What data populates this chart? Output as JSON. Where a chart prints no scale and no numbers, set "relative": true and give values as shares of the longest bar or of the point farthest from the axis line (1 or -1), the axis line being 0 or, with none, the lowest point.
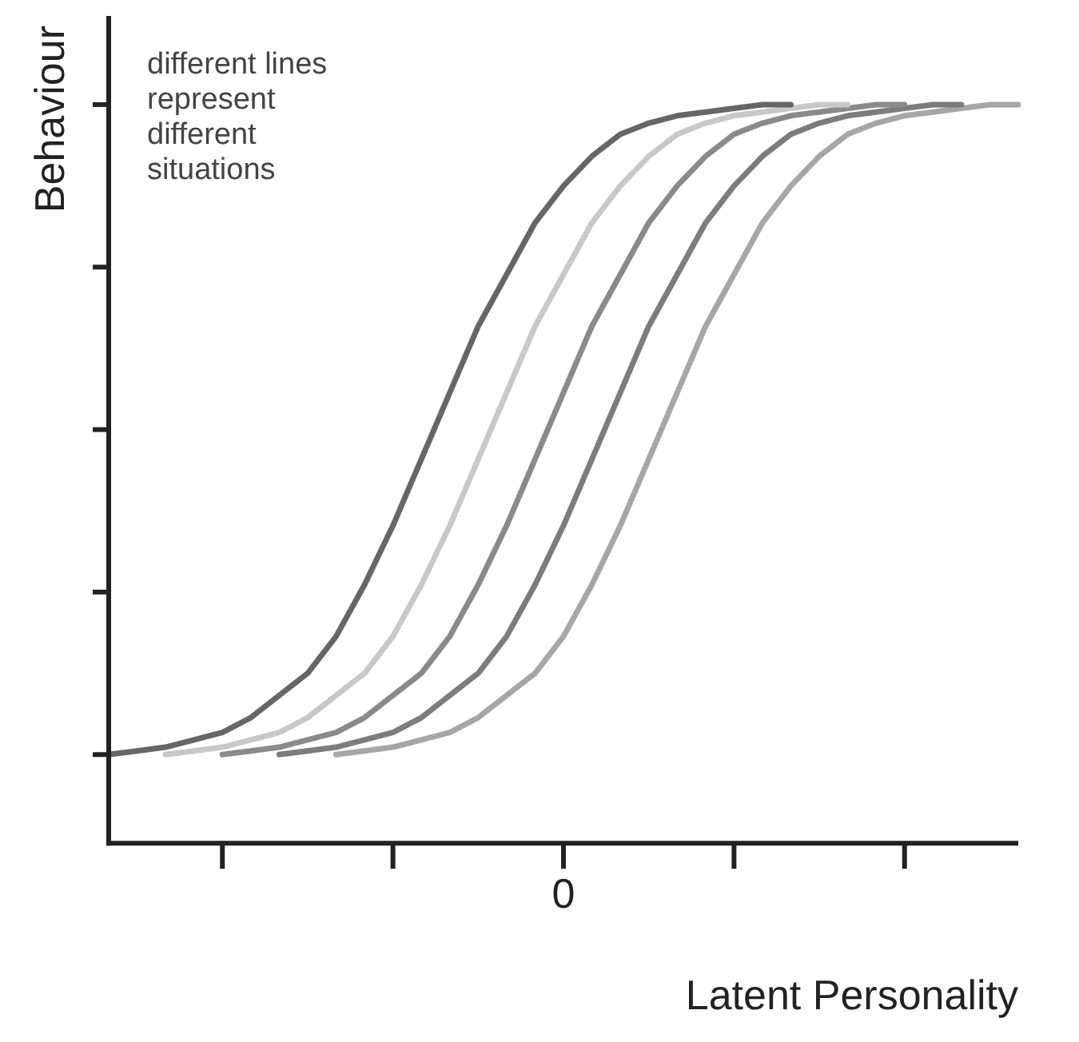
{
  "chart_data": {
    "type": "line",
    "xlabel": "Latent Personality",
    "ylabel": "Behaviour",
    "relative": true,
    "categories": [
      null,
      null,
      null,
      null,
      null,
      null,
      null,
      null,
      null,
      null,
      null,
      null,
      null,
      null,
      null,
      null,
      null,
      null,
      null,
      null,
      null,
      null,
      null,
      null,
      null,
      null,
      null,
      null,
      null,
      null,
      null,
      null,
      null
    ],
    "annotations": [
      "different lines represent different situations",
      "0"
    ],
    "grid": false,
    "legend": false,
    "marker": "none",
    "line_style": "solid",
    "series": [
      {
        "color": "#666666",
        "values": [
          0.12,
          0.125,
          0.13,
          0.14,
          0.15,
          0.17,
          0.2,
          0.23,
          0.28,
          0.35,
          0.43,
          0.52,
          0.61,
          0.7,
          0.77,
          0.84,
          0.89,
          0.93,
          0.96,
          0.975,
          0.985,
          0.99,
          0.995,
          1.0,
          1.0,
          null,
          null,
          null,
          null,
          null,
          null,
          null,
          null
        ]
      },
      {
        "color": "#c8c8c8",
        "values": [
          null,
          null,
          0.12,
          0.125,
          0.13,
          0.14,
          0.15,
          0.17,
          0.2,
          0.23,
          0.28,
          0.35,
          0.43,
          0.52,
          0.61,
          0.7,
          0.77,
          0.84,
          0.89,
          0.93,
          0.96,
          0.975,
          0.985,
          0.99,
          0.995,
          1.0,
          1.0,
          null,
          null,
          null,
          null,
          null,
          null
        ]
      },
      {
        "color": "#8a8a8a",
        "values": [
          null,
          null,
          null,
          null,
          0.12,
          0.125,
          0.13,
          0.14,
          0.15,
          0.17,
          0.2,
          0.23,
          0.28,
          0.35,
          0.43,
          0.52,
          0.61,
          0.7,
          0.77,
          0.84,
          0.89,
          0.93,
          0.96,
          0.975,
          0.985,
          0.99,
          0.995,
          1.0,
          1.0,
          null,
          null,
          null,
          null
        ]
      },
      {
        "color": "#7c7c7c",
        "values": [
          null,
          null,
          null,
          null,
          null,
          null,
          0.12,
          0.125,
          0.13,
          0.14,
          0.15,
          0.17,
          0.2,
          0.23,
          0.28,
          0.35,
          0.43,
          0.52,
          0.61,
          0.7,
          0.77,
          0.84,
          0.89,
          0.93,
          0.96,
          0.975,
          0.985,
          0.99,
          0.995,
          1.0,
          1.0,
          null,
          null
        ]
      },
      {
        "color": "#a6a6a6",
        "values": [
          null,
          null,
          null,
          null,
          null,
          null,
          null,
          null,
          0.12,
          0.125,
          0.13,
          0.14,
          0.15,
          0.17,
          0.2,
          0.23,
          0.28,
          0.35,
          0.43,
          0.52,
          0.61,
          0.7,
          0.77,
          0.84,
          0.89,
          0.93,
          0.96,
          0.975,
          0.985,
          0.99,
          0.995,
          1.0,
          1.0
        ]
      }
    ]
  }
}
